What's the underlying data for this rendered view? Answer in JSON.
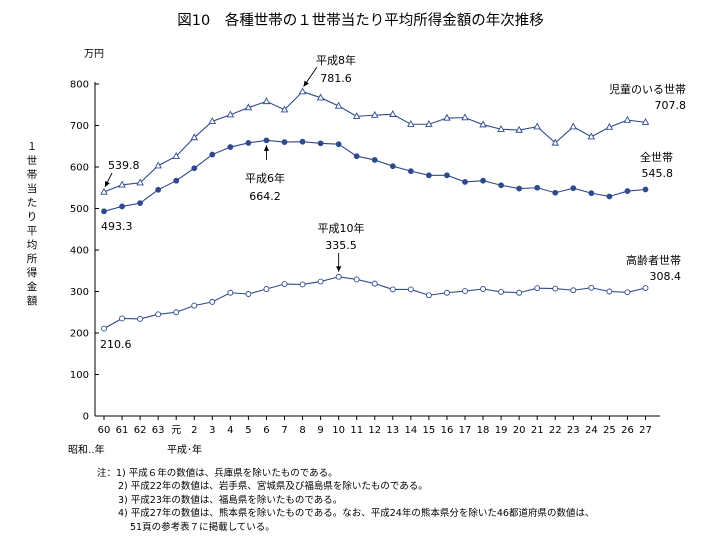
{
  "title": "図10　各種世帯の１世帯当たり平均所得金額の年次推移",
  "chart_data": {
    "type": "line",
    "title": "図10　各種世帯の１世帯当たり平均所得金額の年次推移",
    "ylabel": "１世帯当たり平均所得金額",
    "yunit": "万円",
    "ylim": [
      0,
      800
    ],
    "yticks": [
      0,
      100,
      200,
      300,
      400,
      500,
      600,
      700,
      800
    ],
    "grid": false,
    "categories": [
      "60",
      "61",
      "62",
      "63",
      "元",
      "2",
      "3",
      "4",
      "5",
      "6",
      "7",
      "8",
      "9",
      "10",
      "11",
      "12",
      "13",
      "14",
      "15",
      "16",
      "17",
      "18",
      "19",
      "20",
      "21",
      "22",
      "23",
      "24",
      "25",
      "26",
      "27"
    ],
    "era_labels": {
      "showa": "昭和‥年",
      "heisei": "平成･年"
    },
    "series": [
      {
        "name": "児童のいる世帯",
        "marker": "triangle",
        "end_label": "707.8",
        "values": [
          539.8,
          557,
          562,
          603,
          626,
          671,
          710,
          726,
          743,
          758,
          738,
          781.6,
          767,
          747,
          722,
          725,
          727,
          703,
          703,
          718,
          719,
          702,
          691,
          689,
          697,
          658,
          697,
          673,
          696,
          713,
          707.8
        ]
      },
      {
        "name": "全世帯",
        "marker": "circle-filled",
        "end_label": "545.8",
        "values": [
          493.3,
          505,
          513,
          545,
          567,
          597,
          630,
          648,
          658,
          664.2,
          660,
          661,
          657,
          655,
          626,
          617,
          602,
          590,
          580,
          580,
          564,
          567,
          556,
          548,
          550,
          538,
          549,
          537,
          529,
          542,
          545.8
        ]
      },
      {
        "name": "高齢者世帯",
        "marker": "circle-open",
        "end_label": "308.4",
        "values": [
          210.6,
          235,
          234,
          245,
          250,
          266,
          275,
          297,
          294,
          306,
          318,
          317,
          324,
          335.5,
          329,
          319,
          305,
          305,
          291,
          297,
          301,
          306,
          299,
          297,
          308,
          307,
          303,
          309,
          300,
          298,
          308.4
        ]
      }
    ],
    "annotations": [
      {
        "series": 0,
        "index": 0,
        "text": "539.8"
      },
      {
        "series": 0,
        "index": 11,
        "era": "平成8年",
        "text": "781.6"
      },
      {
        "series": 1,
        "index": 0,
        "text": "493.3"
      },
      {
        "series": 1,
        "index": 9,
        "era": "平成6年",
        "text": "664.2"
      },
      {
        "series": 2,
        "index": 0,
        "text": "210.6"
      },
      {
        "series": 2,
        "index": 13,
        "era": "平成10年",
        "text": "335.5"
      }
    ]
  },
  "notes": [
    "注：1) 平成６年の数値は、兵庫県を除いたものである。",
    "2) 平成22年の数値は、岩手県、宮城県及び福島県を除いたものである。",
    "3) 平成23年の数値は、福島県を除いたものである。",
    "4) 平成27年の数値は、熊本県を除いたものである。なお、平成24年の熊本県分を除いた46都道府県の数値は、",
    "51頁の参考表７に掲載している。"
  ]
}
